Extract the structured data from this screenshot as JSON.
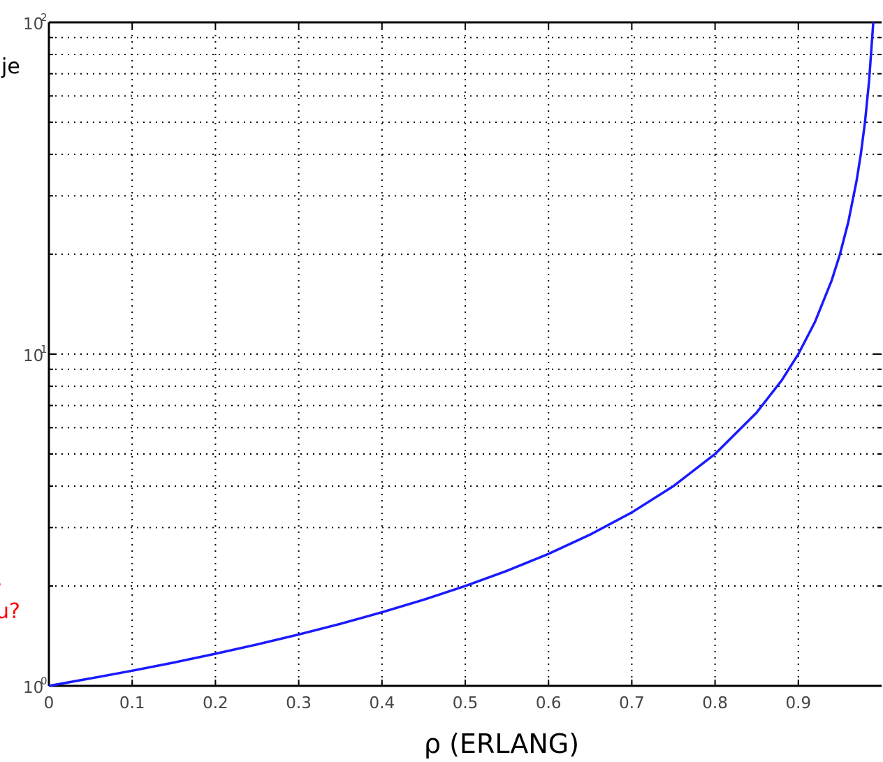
{
  "chart_data": {
    "type": "line",
    "title": "",
    "xlabel": "ρ (ERLANG)",
    "ylabel": "",
    "xlim": [
      0,
      1
    ],
    "ylim": [
      1,
      100
    ],
    "yscale": "log",
    "grid": true,
    "x_ticks": [
      "0",
      "0.1",
      "0.2",
      "0.3",
      "0.4",
      "0.5",
      "0.6",
      "0.7",
      "0.8",
      "0.9"
    ],
    "y_ticks": [
      {
        "base": "10",
        "exp": "0"
      },
      {
        "base": "10",
        "exp": "1"
      },
      {
        "base": "10",
        "exp": "2"
      }
    ],
    "series": [
      {
        "color": "#1a1aff",
        "x": [
          0,
          0.05,
          0.1,
          0.15,
          0.2,
          0.25,
          0.3,
          0.35,
          0.4,
          0.45,
          0.5,
          0.55,
          0.6,
          0.65,
          0.7,
          0.75,
          0.8,
          0.85,
          0.88,
          0.9,
          0.92,
          0.94,
          0.95,
          0.96,
          0.97,
          0.975,
          0.98,
          0.985,
          0.99
        ],
        "y": [
          1.0,
          1.053,
          1.111,
          1.176,
          1.25,
          1.333,
          1.429,
          1.538,
          1.667,
          1.818,
          2.0,
          2.222,
          2.5,
          2.857,
          3.333,
          4.0,
          5.0,
          6.667,
          8.333,
          10.0,
          12.5,
          16.67,
          20.0,
          25.0,
          33.33,
          40.0,
          50.0,
          66.67,
          100.0
        ]
      }
    ]
  },
  "side_text": {
    "top_left": "je",
    "bottom_left": "u?",
    "bottom_left_mark": ","
  },
  "colors": {
    "curve": "#1a1aff",
    "annotation_red": "#ff0000",
    "grid": "#000000"
  }
}
